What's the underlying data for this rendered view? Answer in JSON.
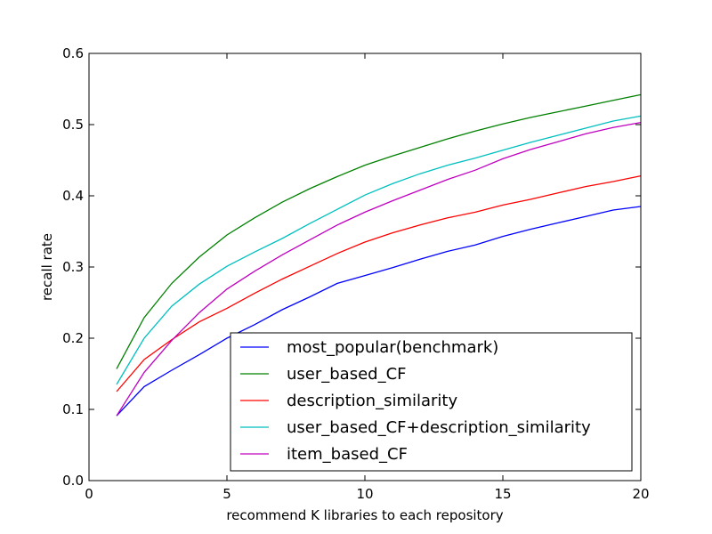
{
  "chart_data": {
    "type": "line",
    "title": "",
    "xlabel": "recommend K libraries to each repository",
    "ylabel": "recall rate",
    "xlim": [
      0,
      20
    ],
    "ylim": [
      0.0,
      0.6
    ],
    "xticks": [
      0,
      5,
      10,
      15,
      20
    ],
    "xtick_labels": [
      "0",
      "5",
      "10",
      "15",
      "20"
    ],
    "yticks": [
      0.0,
      0.1,
      0.2,
      0.3,
      0.4,
      0.5,
      0.6
    ],
    "ytick_labels": [
      "0.0",
      "0.1",
      "0.2",
      "0.3",
      "0.4",
      "0.5",
      "0.6"
    ],
    "grid": false,
    "legend_position": "lower-right",
    "x": [
      1,
      2,
      3,
      4,
      5,
      6,
      7,
      8,
      9,
      10,
      11,
      12,
      13,
      14,
      15,
      16,
      17,
      18,
      19,
      20
    ],
    "series": [
      {
        "name": "most_popular(benchmark)",
        "color": "#0000ff",
        "values": [
          0.091,
          0.132,
          0.155,
          0.177,
          0.2,
          0.219,
          0.24,
          0.258,
          0.277,
          0.288,
          0.299,
          0.311,
          0.322,
          0.331,
          0.343,
          0.353,
          0.362,
          0.371,
          0.38,
          0.385
        ]
      },
      {
        "name": "user_based_CF",
        "color": "#008000",
        "values": [
          0.157,
          0.229,
          0.277,
          0.314,
          0.345,
          0.369,
          0.391,
          0.41,
          0.427,
          0.443,
          0.456,
          0.468,
          0.48,
          0.491,
          0.501,
          0.51,
          0.518,
          0.526,
          0.534,
          0.542
        ]
      },
      {
        "name": "description_similarity",
        "color": "#ff0000",
        "values": [
          0.125,
          0.17,
          0.198,
          0.223,
          0.242,
          0.263,
          0.283,
          0.301,
          0.319,
          0.335,
          0.348,
          0.359,
          0.369,
          0.377,
          0.387,
          0.395,
          0.404,
          0.413,
          0.42,
          0.428
        ]
      },
      {
        "name": "user_based_CF+description_similarity",
        "color": "#00bfbf",
        "values": [
          0.135,
          0.2,
          0.245,
          0.276,
          0.301,
          0.321,
          0.34,
          0.361,
          0.381,
          0.401,
          0.417,
          0.431,
          0.443,
          0.453,
          0.464,
          0.475,
          0.485,
          0.495,
          0.505,
          0.512
        ]
      },
      {
        "name": "item_based_CF",
        "color": "#bf00bf",
        "values": [
          0.091,
          0.152,
          0.197,
          0.236,
          0.269,
          0.294,
          0.317,
          0.338,
          0.359,
          0.377,
          0.393,
          0.408,
          0.423,
          0.436,
          0.452,
          0.465,
          0.476,
          0.487,
          0.496,
          0.503
        ]
      }
    ]
  }
}
